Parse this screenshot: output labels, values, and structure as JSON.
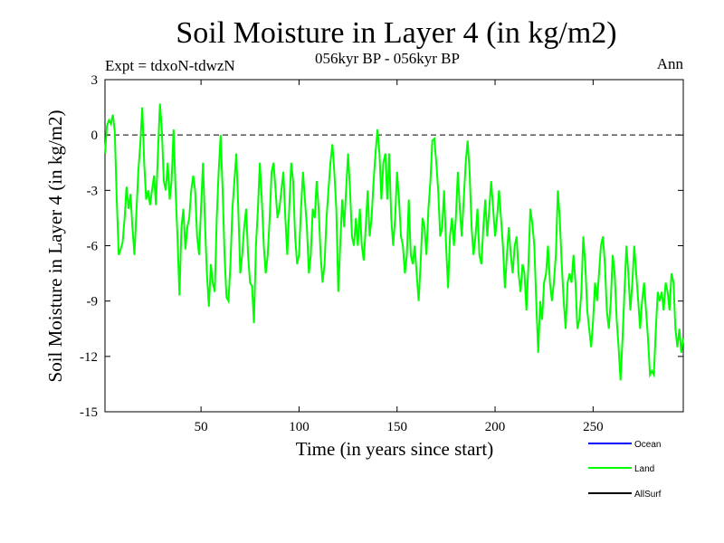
{
  "chart_data": {
    "type": "line",
    "title": "Soil Moisture in Layer 4 (in kg/m2)",
    "subtitle_left": "Expt = tdxoN-tdwzN",
    "subtitle_center": "056kyr BP - 056kyr BP",
    "subtitle_right": "Ann",
    "xlabel": "Time (in years since start)",
    "ylabel": "Soil Moisture in Layer 4 (in kg/m2)",
    "xlim": [
      1,
      296
    ],
    "ylim": [
      -15,
      3
    ],
    "xticks": [
      50,
      100,
      150,
      200,
      250
    ],
    "yticks": [
      3,
      0,
      -3,
      -6,
      -9,
      -12,
      -15
    ],
    "ytick_labels": [
      "3",
      "0",
      "-3",
      "-6",
      "-9",
      "-12",
      "-15"
    ],
    "reference_line": {
      "y": 0,
      "style": "dashed"
    },
    "legend": [
      {
        "name": "Ocean",
        "label": "Ocean",
        "color": "#0000ff"
      },
      {
        "name": "Land",
        "label": "Land",
        "color": "#00ff00"
      },
      {
        "name": "AllSurf",
        "label": "AllSurf",
        "color": "#000000"
      }
    ],
    "series": [
      {
        "name": "Land",
        "color": "#00ff00",
        "points": [
          [
            1,
            -1.0
          ],
          [
            2,
            0.5
          ],
          [
            3,
            0.8
          ],
          [
            4,
            0.6
          ],
          [
            5,
            1.1
          ],
          [
            6,
            0.2
          ],
          [
            7,
            -3.5
          ],
          [
            8,
            -6.5
          ],
          [
            9,
            -6.2
          ],
          [
            10,
            -5.8
          ],
          [
            11,
            -4.5
          ],
          [
            12,
            -2.8
          ],
          [
            13,
            -4.0
          ],
          [
            14,
            -3.2
          ],
          [
            15,
            -5.0
          ],
          [
            16,
            -6.5
          ],
          [
            17,
            -4.2
          ],
          [
            18,
            -2.0
          ],
          [
            19,
            -0.5
          ],
          [
            20,
            1.5
          ],
          [
            21,
            -1.5
          ],
          [
            22,
            -3.5
          ],
          [
            23,
            -3.0
          ],
          [
            24,
            -3.8
          ],
          [
            25,
            -3.0
          ],
          [
            26,
            -2.2
          ],
          [
            27,
            -3.8
          ],
          [
            28,
            -1.0
          ],
          [
            29,
            1.7
          ],
          [
            30,
            0.3
          ],
          [
            31,
            -2.5
          ],
          [
            32,
            -3.0
          ],
          [
            33,
            -1.5
          ],
          [
            34,
            -3.5
          ],
          [
            35,
            -2.5
          ],
          [
            36,
            0.3
          ],
          [
            37,
            -3.0
          ],
          [
            38,
            -5.5
          ],
          [
            39,
            -8.7
          ],
          [
            40,
            -5.0
          ],
          [
            41,
            -4.0
          ],
          [
            42,
            -6.2
          ],
          [
            43,
            -5.0
          ],
          [
            44,
            -4.5
          ],
          [
            45,
            -3.0
          ],
          [
            46,
            -2.2
          ],
          [
            47,
            -3.0
          ],
          [
            48,
            -5.5
          ],
          [
            49,
            -6.5
          ],
          [
            50,
            -4.0
          ],
          [
            51,
            -1.5
          ],
          [
            52,
            -4.8
          ],
          [
            53,
            -7.5
          ],
          [
            54,
            -9.3
          ],
          [
            55,
            -7.0
          ],
          [
            56,
            -8.0
          ],
          [
            57,
            -8.5
          ],
          [
            58,
            -4.5
          ],
          [
            59,
            -2.0
          ],
          [
            60,
            0.0
          ],
          [
            61,
            -3.0
          ],
          [
            62,
            -6.5
          ],
          [
            63,
            -8.8
          ],
          [
            64,
            -9.0
          ],
          [
            65,
            -7.0
          ],
          [
            66,
            -4.0
          ],
          [
            67,
            -2.5
          ],
          [
            68,
            -1.0
          ],
          [
            69,
            -4.0
          ],
          [
            70,
            -7.5
          ],
          [
            71,
            -6.5
          ],
          [
            72,
            -5.0
          ],
          [
            73,
            -4.0
          ],
          [
            74,
            -6.5
          ],
          [
            75,
            -8.0
          ],
          [
            76,
            -8.2
          ],
          [
            77,
            -10.2
          ],
          [
            78,
            -6.0
          ],
          [
            79,
            -4.0
          ],
          [
            80,
            -1.5
          ],
          [
            81,
            -3.5
          ],
          [
            82,
            -6.0
          ],
          [
            83,
            -7.5
          ],
          [
            84,
            -6.5
          ],
          [
            85,
            -4.5
          ],
          [
            86,
            -2.0
          ],
          [
            87,
            -1.5
          ],
          [
            88,
            -3.0
          ],
          [
            89,
            -4.5
          ],
          [
            90,
            -4.0
          ],
          [
            91,
            -3.0
          ],
          [
            92,
            -2.0
          ],
          [
            93,
            -4.5
          ],
          [
            94,
            -6.5
          ],
          [
            95,
            -4.0
          ],
          [
            96,
            -1.5
          ],
          [
            97,
            -2.5
          ],
          [
            98,
            -5.5
          ],
          [
            99,
            -7.0
          ],
          [
            100,
            -6.5
          ],
          [
            101,
            -4.0
          ],
          [
            102,
            -2.0
          ],
          [
            103,
            -3.5
          ],
          [
            104,
            -5.0
          ],
          [
            105,
            -7.5
          ],
          [
            106,
            -6.5
          ],
          [
            107,
            -4.0
          ],
          [
            108,
            -4.5
          ],
          [
            109,
            -2.5
          ],
          [
            110,
            -4.0
          ],
          [
            111,
            -6.5
          ],
          [
            112,
            -8.0
          ],
          [
            113,
            -7.0
          ],
          [
            114,
            -4.5
          ],
          [
            115,
            -3.0
          ],
          [
            116,
            -1.5
          ],
          [
            117,
            -0.5
          ],
          [
            118,
            -2.0
          ],
          [
            119,
            -4.0
          ],
          [
            120,
            -8.5
          ],
          [
            121,
            -6.0
          ],
          [
            122,
            -3.5
          ],
          [
            123,
            -5.0
          ],
          [
            124,
            -3.0
          ],
          [
            125,
            -1.0
          ],
          [
            126,
            -3.0
          ],
          [
            127,
            -5.5
          ],
          [
            128,
            -6.0
          ],
          [
            129,
            -4.5
          ],
          [
            130,
            -6.0
          ],
          [
            131,
            -4.0
          ],
          [
            132,
            -6.0
          ],
          [
            133,
            -6.8
          ],
          [
            134,
            -5.0
          ],
          [
            135,
            -3.0
          ],
          [
            136,
            -5.5
          ],
          [
            137,
            -4.5
          ],
          [
            138,
            -2.5
          ],
          [
            139,
            -1.0
          ],
          [
            140,
            0.3
          ],
          [
            141,
            -1.0
          ],
          [
            142,
            -3.5
          ],
          [
            143,
            -1.5
          ],
          [
            144,
            -1.0
          ],
          [
            145,
            -3.5
          ],
          [
            146,
            -1.0
          ],
          [
            147,
            -4.5
          ],
          [
            148,
            -6.0
          ],
          [
            149,
            -4.5
          ],
          [
            150,
            -2.0
          ],
          [
            151,
            -3.5
          ],
          [
            152,
            -5.5
          ],
          [
            153,
            -6.0
          ],
          [
            154,
            -7.5
          ],
          [
            155,
            -6.5
          ],
          [
            156,
            -3.5
          ],
          [
            157,
            -6.5
          ],
          [
            158,
            -7.0
          ],
          [
            159,
            -6.0
          ],
          [
            160,
            -7.5
          ],
          [
            161,
            -9.0
          ],
          [
            162,
            -7.0
          ],
          [
            163,
            -4.5
          ],
          [
            164,
            -5.0
          ],
          [
            165,
            -6.5
          ],
          [
            166,
            -4.0
          ],
          [
            167,
            -2.5
          ],
          [
            168,
            -0.3
          ],
          [
            169,
            -0.2
          ],
          [
            170,
            -1.5
          ],
          [
            171,
            -3.0
          ],
          [
            172,
            -5.5
          ],
          [
            173,
            -5.0
          ],
          [
            174,
            -3.0
          ],
          [
            175,
            -6.0
          ],
          [
            176,
            -8.3
          ],
          [
            177,
            -5.5
          ],
          [
            178,
            -4.5
          ],
          [
            179,
            -6.0
          ],
          [
            180,
            -4.5
          ],
          [
            181,
            -2.0
          ],
          [
            182,
            -4.0
          ],
          [
            183,
            -5.5
          ],
          [
            184,
            -3.5
          ],
          [
            185,
            -1.5
          ],
          [
            186,
            -0.3
          ],
          [
            187,
            -2.0
          ],
          [
            188,
            -5.0
          ],
          [
            189,
            -6.5
          ],
          [
            190,
            -5.5
          ],
          [
            191,
            -4.0
          ],
          [
            192,
            -6.5
          ],
          [
            193,
            -7.0
          ],
          [
            194,
            -5.0
          ],
          [
            195,
            -3.5
          ],
          [
            196,
            -5.5
          ],
          [
            197,
            -4.0
          ],
          [
            198,
            -2.5
          ],
          [
            199,
            -4.0
          ],
          [
            200,
            -5.5
          ],
          [
            201,
            -4.5
          ],
          [
            202,
            -3.0
          ],
          [
            203,
            -4.5
          ],
          [
            204,
            -6.0
          ],
          [
            205,
            -8.3
          ],
          [
            206,
            -6.5
          ],
          [
            207,
            -5.0
          ],
          [
            208,
            -6.5
          ],
          [
            209,
            -7.5
          ],
          [
            210,
            -6.0
          ],
          [
            211,
            -5.5
          ],
          [
            212,
            -7.5
          ],
          [
            213,
            -8.5
          ],
          [
            214,
            -7.0
          ],
          [
            215,
            -7.5
          ],
          [
            216,
            -9.5
          ],
          [
            217,
            -7.0
          ],
          [
            218,
            -4.0
          ],
          [
            219,
            -4.8
          ],
          [
            220,
            -6.0
          ],
          [
            221,
            -9.0
          ],
          [
            222,
            -11.8
          ],
          [
            223,
            -9.0
          ],
          [
            224,
            -10.0
          ],
          [
            225,
            -8.0
          ],
          [
            226,
            -7.5
          ],
          [
            227,
            -6.0
          ],
          [
            228,
            -8.0
          ],
          [
            229,
            -9.0
          ],
          [
            230,
            -8.0
          ],
          [
            231,
            -6.5
          ],
          [
            232,
            -3.0
          ],
          [
            233,
            -4.5
          ],
          [
            234,
            -7.0
          ],
          [
            235,
            -9.0
          ],
          [
            236,
            -10.5
          ],
          [
            237,
            -8.0
          ],
          [
            238,
            -7.5
          ],
          [
            239,
            -8.0
          ],
          [
            240,
            -6.5
          ],
          [
            241,
            -8.0
          ],
          [
            242,
            -10.5
          ],
          [
            243,
            -10.0
          ],
          [
            244,
            -8.5
          ],
          [
            245,
            -5.5
          ],
          [
            246,
            -7.0
          ],
          [
            247,
            -9.5
          ],
          [
            248,
            -10.5
          ],
          [
            249,
            -11.5
          ],
          [
            250,
            -10.0
          ],
          [
            251,
            -8.0
          ],
          [
            252,
            -9.0
          ],
          [
            253,
            -7.5
          ],
          [
            254,
            -6.0
          ],
          [
            255,
            -5.5
          ],
          [
            256,
            -7.0
          ],
          [
            257,
            -9.5
          ],
          [
            258,
            -10.5
          ],
          [
            259,
            -9.0
          ],
          [
            260,
            -6.5
          ],
          [
            261,
            -7.5
          ],
          [
            262,
            -10.0
          ],
          [
            263,
            -11.5
          ],
          [
            264,
            -13.3
          ],
          [
            265,
            -11.0
          ],
          [
            266,
            -8.5
          ],
          [
            267,
            -6.0
          ],
          [
            268,
            -7.5
          ],
          [
            269,
            -9.5
          ],
          [
            270,
            -8.0
          ],
          [
            271,
            -6.0
          ],
          [
            272,
            -7.5
          ],
          [
            273,
            -9.0
          ],
          [
            274,
            -10.5
          ],
          [
            275,
            -9.0
          ],
          [
            276,
            -8.0
          ],
          [
            277,
            -9.5
          ],
          [
            278,
            -11.0
          ],
          [
            279,
            -13.0
          ],
          [
            280,
            -12.8
          ],
          [
            281,
            -13.0
          ],
          [
            282,
            -10.5
          ],
          [
            283,
            -8.5
          ],
          [
            284,
            -9.0
          ],
          [
            285,
            -8.5
          ],
          [
            286,
            -9.5
          ],
          [
            287,
            -8.0
          ],
          [
            288,
            -8.5
          ],
          [
            289,
            -9.5
          ],
          [
            290,
            -7.5
          ],
          [
            291,
            -8.0
          ],
          [
            292,
            -10.5
          ],
          [
            293,
            -11.5
          ],
          [
            294,
            -10.5
          ],
          [
            295,
            -11.8
          ],
          [
            296,
            -11.0
          ]
        ]
      }
    ]
  }
}
